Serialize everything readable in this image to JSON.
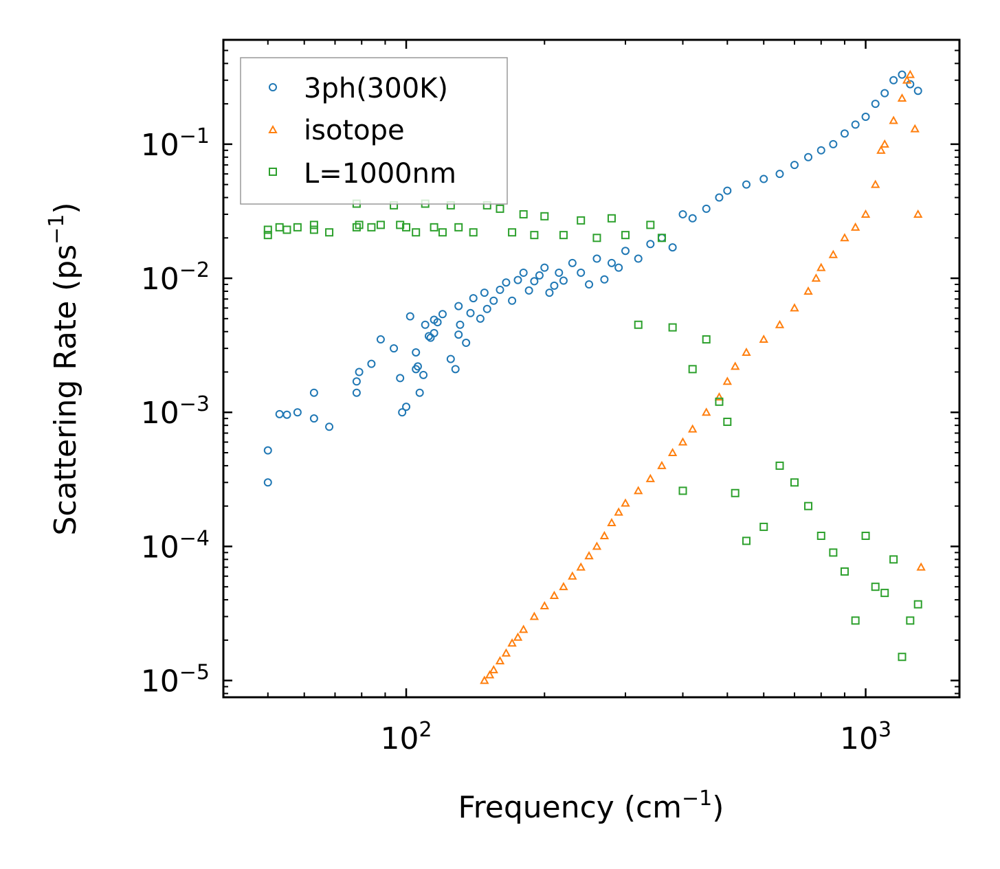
{
  "chart_data": {
    "type": "scatter",
    "title": "",
    "xlabel": "Frequency (cm",
    "xlabel_sup": "−1",
    "xlabel_end": ")",
    "ylabel": "Scattering Rate (ps",
    "ylabel_sup": "−1",
    "ylabel_end": ")",
    "xscale": "log",
    "yscale": "log",
    "xlim": [
      40,
      1600
    ],
    "ylim": [
      7.5e-06,
      0.6
    ],
    "x_ticks": [
      {
        "value": 100,
        "base": "10",
        "exp": "2"
      },
      {
        "value": 1000,
        "base": "10",
        "exp": "3"
      }
    ],
    "y_ticks": [
      {
        "value": 1e-05,
        "base": "10",
        "exp": "−5"
      },
      {
        "value": 0.0001,
        "base": "10",
        "exp": "−4"
      },
      {
        "value": 0.001,
        "base": "10",
        "exp": "−3"
      },
      {
        "value": 0.01,
        "base": "10",
        "exp": "−2"
      },
      {
        "value": 0.1,
        "base": "10",
        "exp": "−1"
      }
    ],
    "legend_position": "top-left",
    "series": [
      {
        "name": "3ph(300K)",
        "marker": "circle",
        "color": "#1f77b4",
        "x": [
          50,
          50,
          53,
          55,
          58,
          63,
          63,
          68,
          78,
          78,
          79,
          84,
          88,
          94,
          97,
          98,
          100,
          102,
          105,
          105,
          106,
          107,
          109,
          110,
          112,
          113,
          115,
          115,
          117,
          120,
          125,
          128,
          130,
          130,
          131,
          135,
          138,
          140,
          145,
          148,
          150,
          155,
          160,
          165,
          170,
          175,
          180,
          185,
          190,
          195,
          200,
          205,
          210,
          215,
          220,
          230,
          240,
          250,
          260,
          270,
          280,
          290,
          300,
          320,
          340,
          360,
          380,
          400,
          420,
          450,
          480,
          500,
          550,
          600,
          650,
          700,
          750,
          800,
          850,
          900,
          950,
          1000,
          1050,
          1100,
          1150,
          1200,
          1250,
          1300
        ],
        "y": [
          0.0003,
          0.00052,
          0.00097,
          0.00096,
          0.001,
          0.0009,
          0.0014,
          0.00078,
          0.0014,
          0.0017,
          0.002,
          0.0023,
          0.0035,
          0.003,
          0.0018,
          0.001,
          0.0011,
          0.0052,
          0.0028,
          0.0021,
          0.0022,
          0.0014,
          0.0019,
          0.0045,
          0.0037,
          0.0036,
          0.0049,
          0.0039,
          0.0047,
          0.0054,
          0.0025,
          0.0021,
          0.0038,
          0.0062,
          0.0045,
          0.0033,
          0.0055,
          0.0071,
          0.005,
          0.0078,
          0.0059,
          0.0068,
          0.0082,
          0.0093,
          0.0068,
          0.0097,
          0.011,
          0.0081,
          0.0095,
          0.0105,
          0.012,
          0.0078,
          0.0088,
          0.011,
          0.0096,
          0.013,
          0.011,
          0.009,
          0.014,
          0.0098,
          0.013,
          0.012,
          0.016,
          0.014,
          0.018,
          0.02,
          0.017,
          0.03,
          0.028,
          0.033,
          0.04,
          0.045,
          0.05,
          0.055,
          0.06,
          0.07,
          0.08,
          0.09,
          0.1,
          0.12,
          0.14,
          0.16,
          0.2,
          0.24,
          0.3,
          0.33,
          0.28,
          0.25
        ]
      },
      {
        "name": "isotope",
        "marker": "triangle",
        "color": "#ff7f0e",
        "x": [
          148,
          152,
          155,
          160,
          165,
          170,
          175,
          180,
          190,
          200,
          210,
          220,
          230,
          240,
          250,
          260,
          270,
          280,
          290,
          300,
          320,
          340,
          360,
          380,
          400,
          420,
          450,
          480,
          500,
          520,
          550,
          600,
          650,
          700,
          750,
          780,
          800,
          850,
          900,
          950,
          1000,
          1050,
          1080,
          1100,
          1150,
          1200,
          1230,
          1250,
          1280,
          1300,
          1320
        ],
        "y": [
          1e-05,
          1.1e-05,
          1.2e-05,
          1.4e-05,
          1.6e-05,
          1.9e-05,
          2.1e-05,
          2.4e-05,
          3e-05,
          3.6e-05,
          4.3e-05,
          5e-05,
          6e-05,
          7e-05,
          8.5e-05,
          0.0001,
          0.00012,
          0.00015,
          0.00018,
          0.00021,
          0.00026,
          0.00032,
          0.0004,
          0.0005,
          0.0006,
          0.00075,
          0.001,
          0.0013,
          0.0017,
          0.0022,
          0.0028,
          0.0035,
          0.0045,
          0.006,
          0.008,
          0.01,
          0.012,
          0.015,
          0.02,
          0.024,
          0.03,
          0.05,
          0.09,
          0.1,
          0.15,
          0.22,
          0.3,
          0.33,
          0.13,
          0.03,
          7e-05
        ]
      },
      {
        "name": "L=1000nm",
        "marker": "square",
        "color": "#2ca02c",
        "x": [
          50,
          50,
          53,
          55,
          58,
          63,
          63,
          68,
          78,
          78,
          79,
          84,
          88,
          94,
          97,
          100,
          105,
          110,
          115,
          120,
          125,
          130,
          140,
          150,
          160,
          170,
          180,
          190,
          200,
          220,
          240,
          260,
          280,
          300,
          320,
          340,
          360,
          380,
          400,
          420,
          450,
          480,
          500,
          520,
          550,
          600,
          650,
          700,
          750,
          800,
          850,
          900,
          950,
          1000,
          1050,
          1100,
          1150,
          1200,
          1250,
          1300
        ],
        "y": [
          0.021,
          0.023,
          0.024,
          0.023,
          0.024,
          0.023,
          0.025,
          0.022,
          0.036,
          0.024,
          0.025,
          0.024,
          0.025,
          0.035,
          0.025,
          0.024,
          0.022,
          0.036,
          0.024,
          0.022,
          0.035,
          0.024,
          0.022,
          0.035,
          0.033,
          0.022,
          0.03,
          0.021,
          0.029,
          0.021,
          0.027,
          0.02,
          0.028,
          0.021,
          0.0045,
          0.025,
          0.02,
          0.0043,
          0.00026,
          0.0021,
          0.0035,
          0.0012,
          0.00085,
          0.00025,
          0.00011,
          0.00014,
          0.0004,
          0.0003,
          0.0002,
          0.00012,
          9e-05,
          6.5e-05,
          2.8e-05,
          0.00012,
          5e-05,
          4.5e-05,
          8e-05,
          1.5e-05,
          2.8e-05,
          3.7e-05
        ]
      }
    ]
  }
}
